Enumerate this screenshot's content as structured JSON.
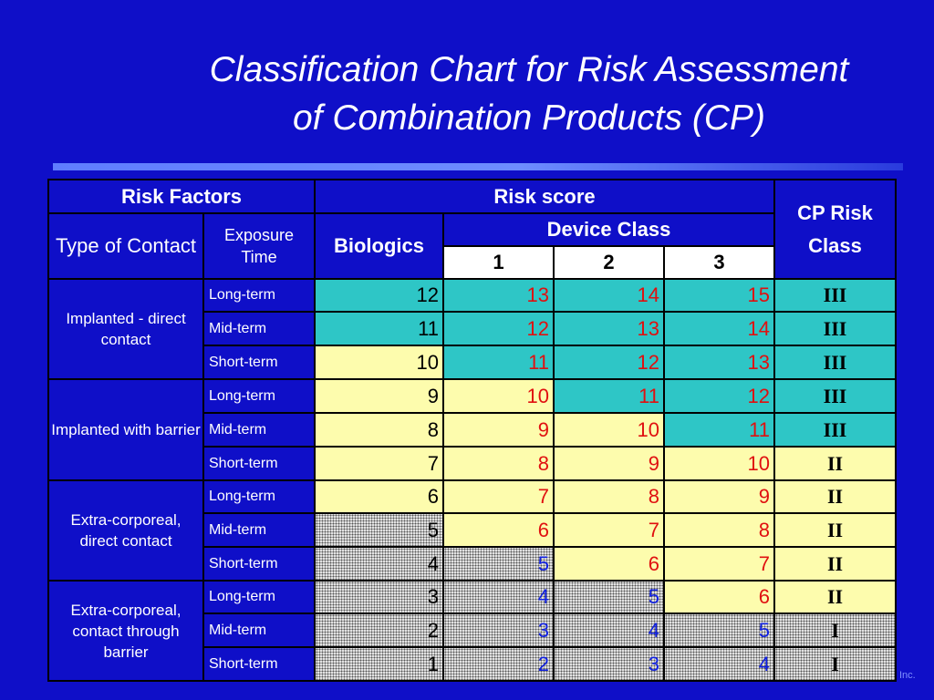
{
  "title": {
    "line1": "Classification Chart for Risk Assessment",
    "line2": "of Combination Products (CP)"
  },
  "headers": {
    "risk_factors": "Risk Factors",
    "risk_score": "Risk score",
    "cp_risk_class": "CP Risk Class",
    "type_of_contact": "Type of Contact",
    "exposure_time": "Exposure Time",
    "biologics": "Biologics",
    "device_class": "Device Class",
    "device_cols": [
      "1",
      "2",
      "3"
    ]
  },
  "groups": [
    {
      "label": "Implanted - direct contact"
    },
    {
      "label": "Implanted with barrier"
    },
    {
      "label": "Extra-corporeal, direct contact"
    },
    {
      "label": "Extra-corporeal, contact through barrier"
    }
  ],
  "rows": [
    {
      "exposure": "Long-term",
      "bio": "12",
      "d1": "13",
      "d2": "14",
      "d3": "15",
      "cls": "III",
      "shade": [
        "teal",
        "teal",
        "teal",
        "teal",
        "teal"
      ],
      "color": [
        "black",
        "red",
        "red",
        "red"
      ]
    },
    {
      "exposure": "Mid-term",
      "bio": "11",
      "d1": "12",
      "d2": "13",
      "d3": "14",
      "cls": "III",
      "shade": [
        "teal",
        "teal",
        "teal",
        "teal",
        "teal"
      ],
      "color": [
        "black",
        "red",
        "red",
        "red"
      ]
    },
    {
      "exposure": "Short-term",
      "bio": "10",
      "d1": "11",
      "d2": "12",
      "d3": "13",
      "cls": "III",
      "shade": [
        "yel",
        "teal",
        "teal",
        "teal",
        "teal"
      ],
      "color": [
        "black",
        "red",
        "red",
        "red"
      ]
    },
    {
      "exposure": "Long-term",
      "bio": "9",
      "d1": "10",
      "d2": "11",
      "d3": "12",
      "cls": "III",
      "shade": [
        "yel",
        "yel",
        "teal",
        "teal",
        "teal"
      ],
      "color": [
        "black",
        "red",
        "red",
        "red"
      ]
    },
    {
      "exposure": "Mid-term",
      "bio": "8",
      "d1": "9",
      "d2": "10",
      "d3": "11",
      "cls": "III",
      "shade": [
        "yel",
        "yel",
        "yel",
        "teal",
        "teal"
      ],
      "color": [
        "black",
        "red",
        "red",
        "red"
      ]
    },
    {
      "exposure": "Short-term",
      "bio": "7",
      "d1": "8",
      "d2": "9",
      "d3": "10",
      "cls": "II",
      "shade": [
        "yel",
        "yel",
        "yel",
        "yel",
        "yel"
      ],
      "color": [
        "black",
        "red",
        "red",
        "red"
      ]
    },
    {
      "exposure": "Long-term",
      "bio": "6",
      "d1": "7",
      "d2": "8",
      "d3": "9",
      "cls": "II",
      "shade": [
        "yel",
        "yel",
        "yel",
        "yel",
        "yel"
      ],
      "color": [
        "black",
        "red",
        "red",
        "red"
      ]
    },
    {
      "exposure": "Mid-term",
      "bio": "5",
      "d1": "6",
      "d2": "7",
      "d3": "8",
      "cls": "II",
      "shade": [
        "dot",
        "yel",
        "yel",
        "yel",
        "yel"
      ],
      "color": [
        "black",
        "red",
        "red",
        "red"
      ]
    },
    {
      "exposure": "Short-term",
      "bio": "4",
      "d1": "5",
      "d2": "6",
      "d3": "7",
      "cls": "II",
      "shade": [
        "dot",
        "dot",
        "yel",
        "yel",
        "yel"
      ],
      "color": [
        "black",
        "blue",
        "red",
        "red"
      ]
    },
    {
      "exposure": "Long-term",
      "bio": "3",
      "d1": "4",
      "d2": "5",
      "d3": "6",
      "cls": "II",
      "shade": [
        "dot",
        "dot",
        "dot",
        "yel",
        "yel"
      ],
      "color": [
        "black",
        "blue",
        "blue",
        "red"
      ]
    },
    {
      "exposure": "Mid-term",
      "bio": "2",
      "d1": "3",
      "d2": "4",
      "d3": "5",
      "cls": "I",
      "shade": [
        "dot",
        "dot",
        "dot",
        "dot",
        "dot"
      ],
      "color": [
        "black",
        "blue",
        "blue",
        "blue"
      ]
    },
    {
      "exposure": "Short-term",
      "bio": "1",
      "d1": "2",
      "d2": "3",
      "d3": "4",
      "cls": "I",
      "shade": [
        "dot",
        "dot",
        "dot",
        "dot",
        "dot"
      ],
      "color": [
        "black",
        "blue",
        "blue",
        "blue"
      ]
    }
  ],
  "footer": "Inc."
}
